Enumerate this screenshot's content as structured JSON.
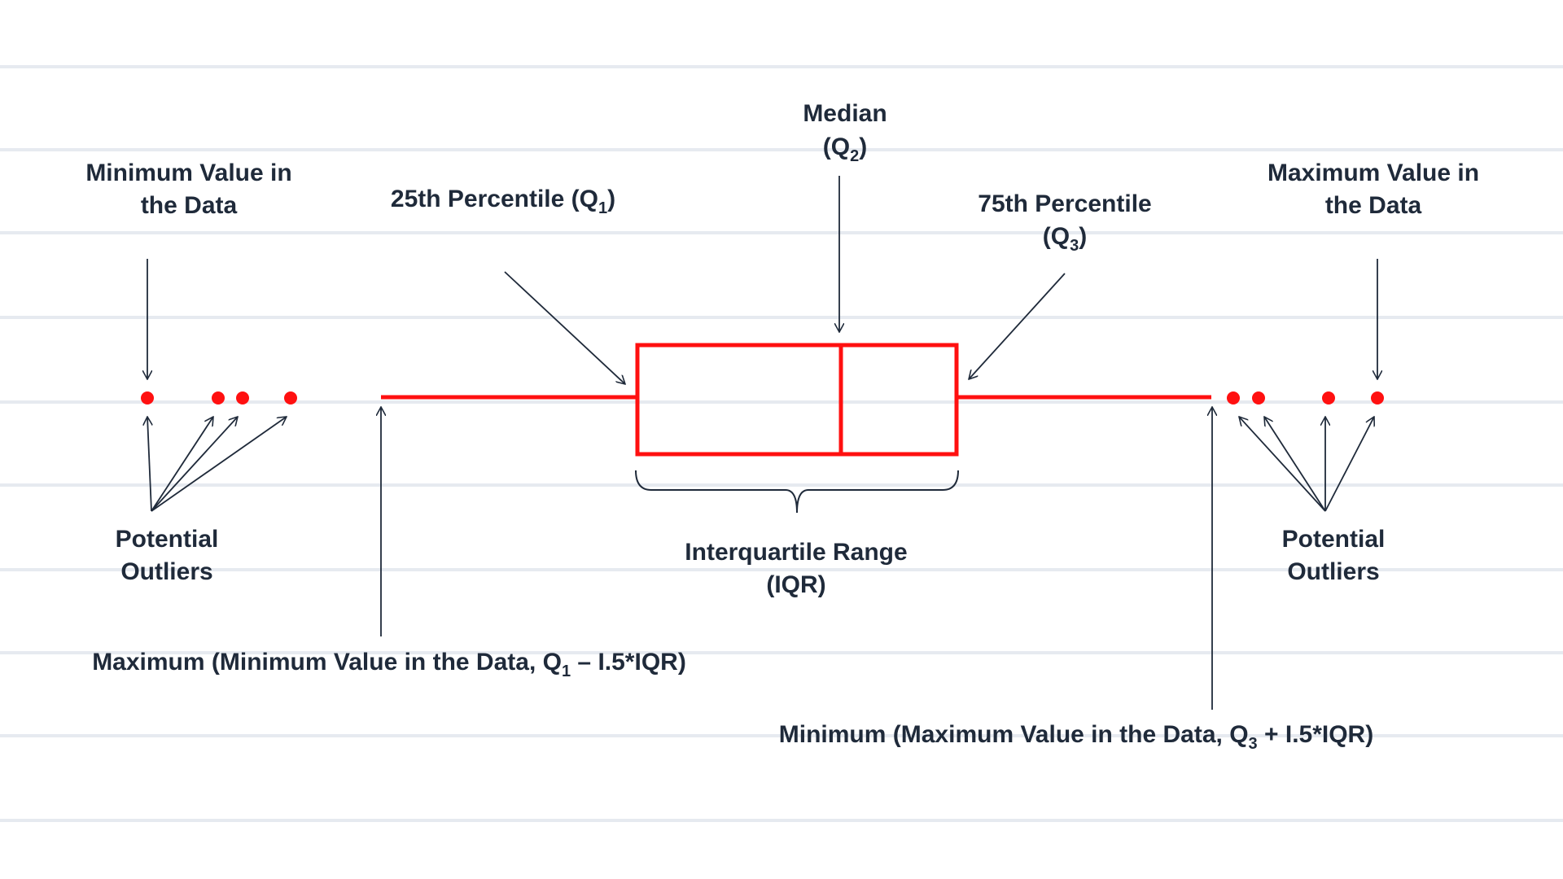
{
  "colors": {
    "box": "#ff1010",
    "ink": "#1f2a3a",
    "ruled_line": "#e6eaf0",
    "background": "#ffffff"
  },
  "labels": {
    "median": {
      "line1": "Median",
      "open": "(Q",
      "sub": "2",
      "close": ")"
    },
    "q1": {
      "text": "25th Percentile (Q",
      "sub": "1",
      "close": ")"
    },
    "q3": {
      "line1": "75th Percentile",
      "open": "(Q",
      "sub": "3",
      "close": ")"
    },
    "min_value": {
      "line1": "Minimum Value in",
      "line2": "the Data"
    },
    "max_value": {
      "line1": "Maximum Value in",
      "line2": "the Data"
    },
    "outliers_left": {
      "line1": "Potential",
      "line2": "Outliers"
    },
    "outliers_right": {
      "line1": "Potential",
      "line2": "Outliers"
    },
    "iqr": {
      "line1": "Interquartile Range",
      "line2": "(IQR)"
    },
    "lower_whisker": {
      "pre": "Maximum (Minimum Value in the Data, Q",
      "sub": "1",
      "post": " – I.5*IQR)"
    },
    "upper_whisker": {
      "pre": "Minimum (Maximum Value in the Data, Q",
      "sub": "3",
      "post": " + I.5*IQR)"
    }
  }
}
